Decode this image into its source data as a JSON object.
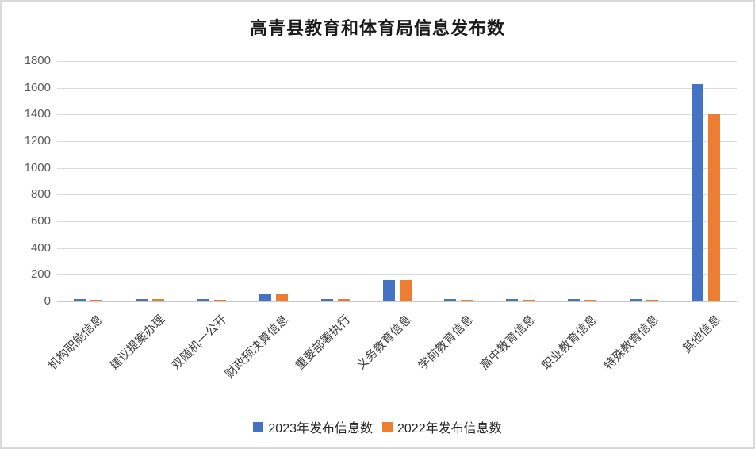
{
  "chart_data": {
    "type": "bar",
    "title": "高青县教育和体育局信息发布数",
    "categories": [
      "机构职能信息",
      "建议提案办理",
      "双随机一公开",
      "财政预决算信息",
      "重要部署执行",
      "义务教育信息",
      "学前教育信息",
      "高中教育信息",
      "职业教育信息",
      "特殊教育信息",
      "其他信息"
    ],
    "series": [
      {
        "name": "2023年发布信息数",
        "color": "#4472C4",
        "values": [
          20,
          20,
          15,
          60,
          20,
          160,
          20,
          15,
          15,
          15,
          1630
        ]
      },
      {
        "name": "2022年发布信息数",
        "color": "#ED7D31",
        "values": [
          10,
          18,
          10,
          55,
          18,
          160,
          12,
          12,
          12,
          12,
          1400
        ]
      }
    ],
    "xlabel": "",
    "ylabel": "",
    "ylim": [
      0,
      1800
    ],
    "ytick_step": 200,
    "grid": true,
    "legend_position": "bottom",
    "gridline_color": "#dcdcdc",
    "axis_line_color": "#c9c9c9",
    "tick_label_color": "#595959"
  }
}
